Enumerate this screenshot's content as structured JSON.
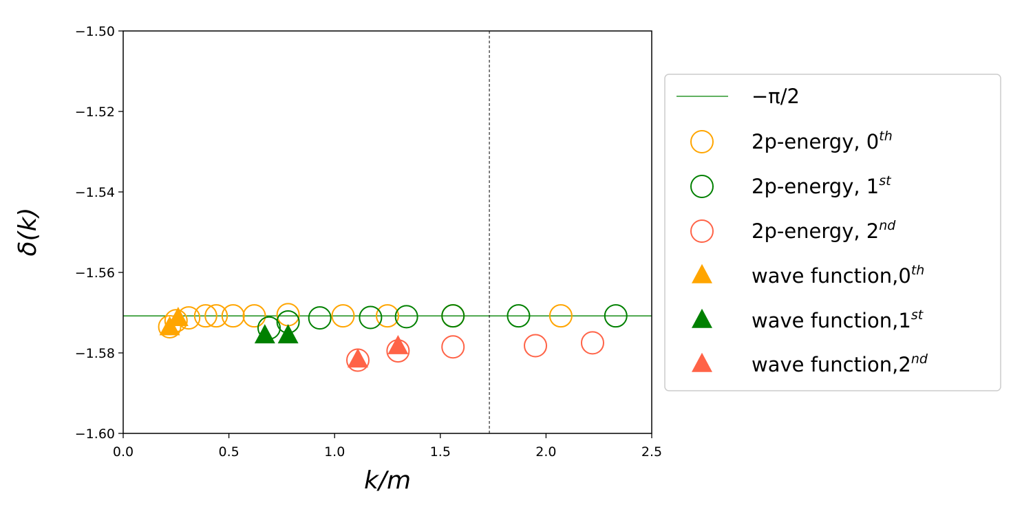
{
  "chart_data": {
    "type": "scatter",
    "xlabel": "k/m",
    "ylabel": "δ(k)",
    "xlim": [
      0.0,
      2.5
    ],
    "ylim": [
      -1.6,
      -1.5
    ],
    "xticks": [
      "0.0",
      "0.5",
      "1.0",
      "1.5",
      "2.0",
      "2.5"
    ],
    "yticks": [
      "−1.60",
      "−1.58",
      "−1.56",
      "−1.54",
      "−1.52",
      "−1.50"
    ],
    "xtick_values": [
      0.0,
      0.5,
      1.0,
      1.5,
      2.0,
      2.5
    ],
    "ytick_values": [
      -1.6,
      -1.58,
      -1.56,
      -1.54,
      -1.52,
      -1.5
    ],
    "grid": false,
    "legend_position": "right-outside",
    "reference_lines": [
      {
        "orientation": "horizontal",
        "y": -1.5708,
        "label": "−π/2",
        "color": "#008000",
        "style": "solid"
      },
      {
        "orientation": "vertical",
        "x": 1.732,
        "color": "#000000",
        "style": "dashed"
      }
    ],
    "series": [
      {
        "name": "2p-energy, 0",
        "sup": "th",
        "marker": "open-circle",
        "color": "#FFA500",
        "points": [
          [
            0.22,
            -1.5735
          ],
          [
            0.25,
            -1.572
          ],
          [
            0.31,
            -1.5713
          ],
          [
            0.39,
            -1.5708
          ],
          [
            0.44,
            -1.5708
          ],
          [
            0.52,
            -1.5708
          ],
          [
            0.62,
            -1.5708
          ],
          [
            0.78,
            -1.5705
          ],
          [
            1.04,
            -1.5708
          ],
          [
            1.25,
            -1.5708
          ],
          [
            1.56,
            -1.5708
          ],
          [
            2.07,
            -1.5708
          ]
        ]
      },
      {
        "name": "2p-energy, 1",
        "sup": "st",
        "marker": "open-circle",
        "color": "#008000",
        "points": [
          [
            0.69,
            -1.5738
          ],
          [
            0.78,
            -1.5723
          ],
          [
            0.93,
            -1.5713
          ],
          [
            1.17,
            -1.5712
          ],
          [
            1.34,
            -1.571
          ],
          [
            1.56,
            -1.5708
          ],
          [
            1.87,
            -1.5708
          ],
          [
            2.33,
            -1.5708
          ]
        ]
      },
      {
        "name": "2p-energy, 2",
        "sup": "nd",
        "marker": "open-circle",
        "color": "#FF6347",
        "points": [
          [
            1.11,
            -1.5818
          ],
          [
            1.3,
            -1.5795
          ],
          [
            1.56,
            -1.5785
          ],
          [
            1.95,
            -1.5782
          ],
          [
            2.22,
            -1.5775
          ]
        ]
      },
      {
        "name": "wave function,0",
        "sup": "th",
        "marker": "filled-triangle",
        "color": "#FFA500",
        "points": [
          [
            0.22,
            -1.5738
          ],
          [
            0.26,
            -1.5715
          ]
        ]
      },
      {
        "name": "wave function,1",
        "sup": "st",
        "marker": "filled-triangle",
        "color": "#008000",
        "points": [
          [
            0.67,
            -1.5758
          ],
          [
            0.78,
            -1.5758
          ]
        ]
      },
      {
        "name": "wave function,2",
        "sup": "nd",
        "marker": "filled-triangle",
        "color": "#FF6347",
        "points": [
          [
            1.11,
            -1.5818
          ],
          [
            1.3,
            -1.5785
          ]
        ]
      }
    ]
  }
}
